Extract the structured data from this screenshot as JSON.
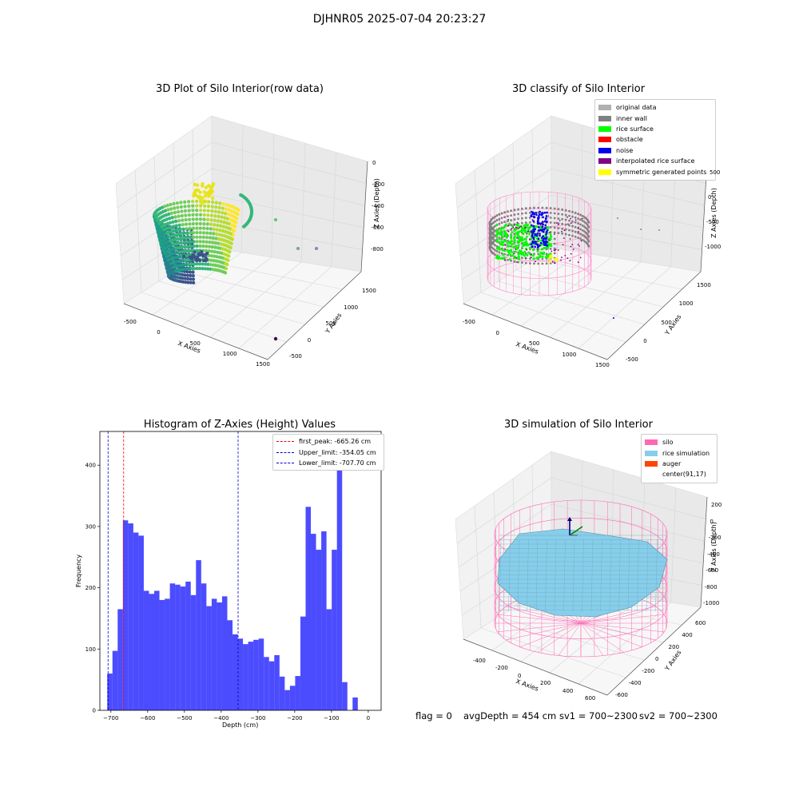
{
  "suptitle": "DJHNR05 2025-07-04 20:23:27",
  "status": {
    "flag": "flag = 0",
    "avg": "avgDepth = 454 cm",
    "sv1": "sv1 = 700~2300",
    "sv2": "sv2 = 700~2300"
  },
  "panel1": {
    "title": "3D Plot of Silo Interior(row data)",
    "xlabel": "X Axies",
    "ylabel": "Y Axies",
    "zlabel": "Z Axies (Depth)",
    "xticks": [
      "-500",
      "0",
      "500",
      "1000",
      "1500"
    ],
    "yticks": [
      "-500",
      "0",
      "500",
      "1000",
      "1500"
    ],
    "zticks": [
      "0",
      "-200",
      "-400",
      "-600",
      "-800"
    ]
  },
  "panel2": {
    "title": "3D classify of Silo Interior",
    "xlabel": "X Axies",
    "ylabel": "Y Axies",
    "zlabel": "Z Axies (Depth)",
    "xticks": [
      "-500",
      "0",
      "500",
      "1000",
      "1500"
    ],
    "yticks": [
      "-500",
      "0",
      "500",
      "1000",
      "1500"
    ],
    "zticks": [
      "500",
      "0",
      "-500",
      "-1000"
    ],
    "legend": [
      {
        "label": "original data",
        "color": "#b0b0b0"
      },
      {
        "label": "inner wall",
        "color": "#808080"
      },
      {
        "label": "rice surface",
        "color": "#00ff00"
      },
      {
        "label": "obstacle",
        "color": "#ff0000"
      },
      {
        "label": "noise",
        "color": "#0000ee"
      },
      {
        "label": "interpolated rice surface",
        "color": "#800080"
      },
      {
        "label": "symmetric generated points",
        "color": "#ffff00"
      }
    ]
  },
  "panel4": {
    "title": "3D simulation of Silo Interior",
    "xlabel": "X Axies",
    "ylabel": "Y Axies",
    "zlabel": "Z Axies (Depth)",
    "xticks": [
      "-400",
      "-200",
      "0",
      "200",
      "400",
      "600"
    ],
    "yticks": [
      "-600",
      "-400",
      "-200",
      "0",
      "200",
      "400",
      "600"
    ],
    "zticks": [
      "200",
      "0",
      "-200",
      "-400",
      "-600",
      "-800",
      "-1000"
    ],
    "legend": [
      {
        "label": "silo",
        "color": "#ff69b4"
      },
      {
        "label": "rice simulation",
        "color": "#87ceeb"
      },
      {
        "label": "auger",
        "color": "#ff4500"
      },
      {
        "label": "center(91,17)",
        "color": "#ffffff"
      }
    ]
  },
  "chart_data": {
    "type": "bar",
    "title": "Histogram of Z-Axies (Height) Values",
    "xlabel": "Depth (cm)",
    "ylabel": "Frequency",
    "xlim": [
      -730,
      35
    ],
    "ylim": [
      0,
      455
    ],
    "xticks": [
      -700,
      -600,
      -500,
      -400,
      -300,
      -200,
      -100,
      0
    ],
    "yticks": [
      0,
      100,
      200,
      300,
      400
    ],
    "bar_color": "#0000ff",
    "bins_start": -710,
    "bin_width": 14.2,
    "values": [
      60,
      97,
      165,
      310,
      305,
      290,
      285,
      195,
      190,
      195,
      180,
      182,
      207,
      205,
      202,
      210,
      188,
      245,
      207,
      170,
      182,
      176,
      186,
      147,
      124,
      117,
      108,
      112,
      115,
      117,
      87,
      80,
      90,
      55,
      33,
      40,
      56,
      153,
      332,
      288,
      262,
      292,
      165,
      262,
      432,
      46,
      0,
      21
    ],
    "vlines": [
      {
        "label": "first_peak: -665.26 cm",
        "x": -665.26,
        "color": "#ff0000"
      },
      {
        "label": "Upper_limit: -354.05 cm",
        "x": -354.05,
        "color": "#0000cc"
      },
      {
        "label": "Lower_limit: -707.70 cm",
        "x": -707.7,
        "color": "#0000cc"
      }
    ]
  }
}
